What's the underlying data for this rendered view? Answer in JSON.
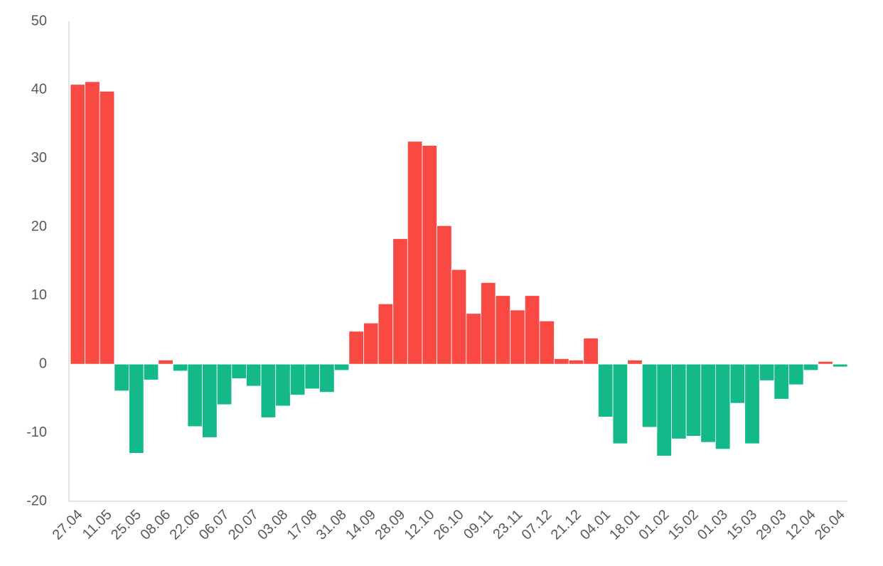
{
  "chart_data": {
    "type": "bar",
    "categories": [
      "27.04",
      null,
      "11.05",
      null,
      "25.05",
      null,
      "08.06",
      null,
      "22.06",
      null,
      "06.07",
      null,
      "20.07",
      null,
      "03.08",
      null,
      "17.08",
      null,
      "31.08",
      null,
      "14.09",
      null,
      "28.09",
      null,
      "12.10",
      null,
      "26.10",
      null,
      "09.11",
      null,
      "23.11",
      null,
      "07.12",
      null,
      "21.12",
      null,
      "04.01",
      null,
      "18.01",
      null,
      "01.02",
      null,
      "15.02",
      null,
      "01.03",
      null,
      "15.03",
      null,
      "29.03",
      null,
      "12.04",
      null,
      "26.04"
    ],
    "values": [
      40.8,
      41.2,
      39.8,
      -3.9,
      -13.0,
      -2.3,
      0.6,
      -1.0,
      -9.1,
      -10.7,
      -5.9,
      -2.1,
      -3.2,
      -7.8,
      -6.1,
      -4.5,
      -3.6,
      -4.1,
      -0.9,
      4.8,
      6.0,
      8.8,
      18.3,
      32.5,
      31.9,
      20.2,
      13.8,
      7.4,
      11.9,
      10.0,
      7.9,
      10.0,
      6.3,
      0.8,
      0.6,
      3.8,
      -7.7,
      -11.6,
      0.6,
      -9.2,
      -13.4,
      -10.9,
      -10.5,
      -11.4,
      -12.4,
      -5.7,
      -11.6,
      -2.4,
      -5.1,
      -3.0,
      -0.9,
      0.4,
      -0.4
    ],
    "positive_color": "#f84a43",
    "negative_color": "#14b98a",
    "ylim": [
      -20,
      50
    ],
    "yticks": [
      -20,
      -10,
      0,
      10,
      20,
      30,
      40,
      50
    ],
    "grid": false
  }
}
